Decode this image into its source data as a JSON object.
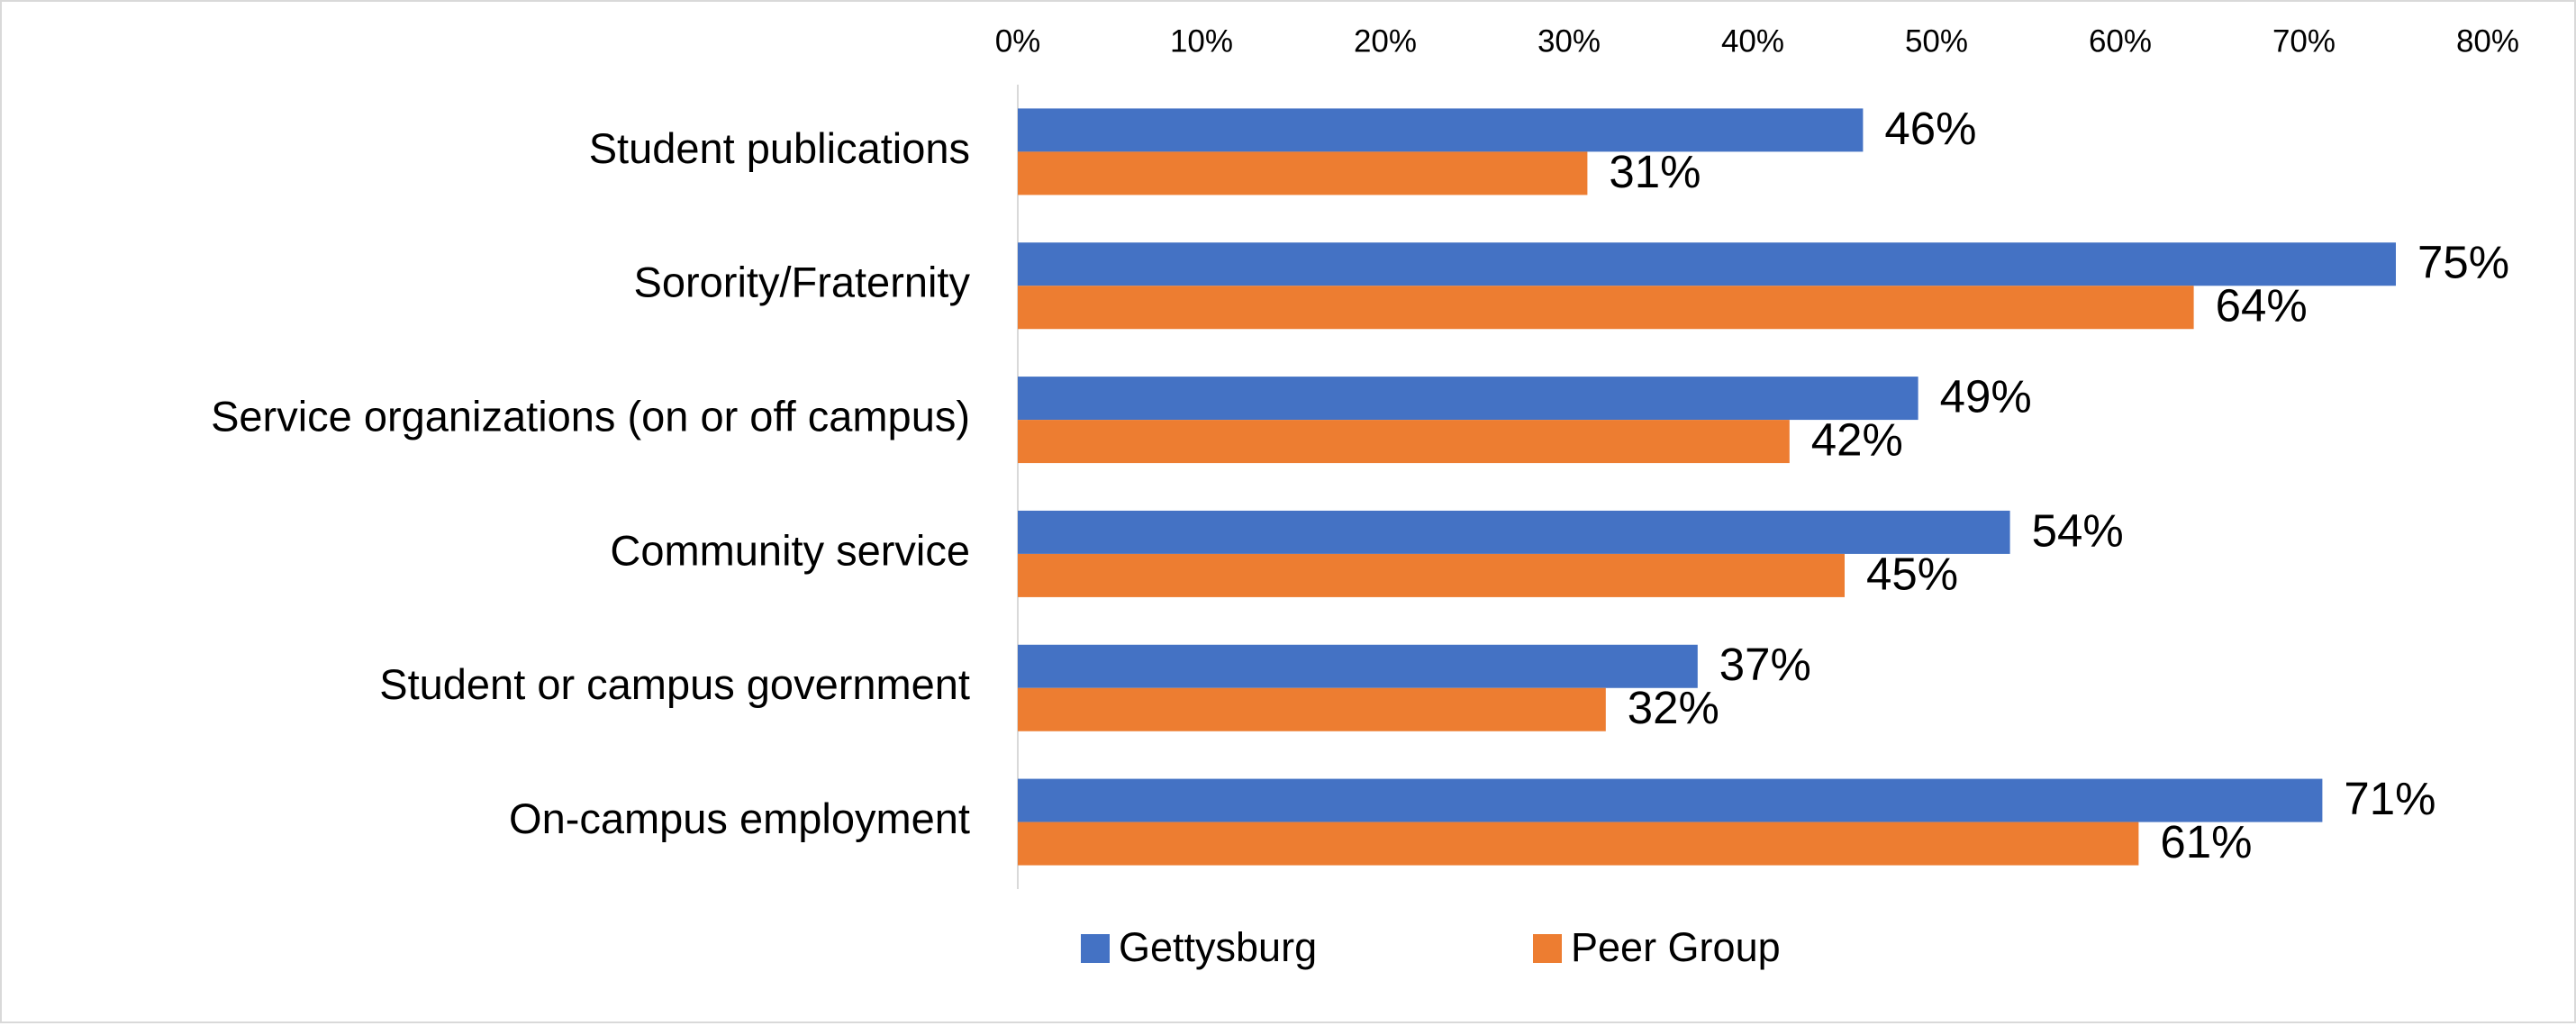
{
  "chart_data": {
    "type": "bar",
    "orientation": "horizontal",
    "title": "",
    "xlabel": "",
    "ylabel": "",
    "xlim": [
      0,
      80
    ],
    "x_ticks": [
      0,
      10,
      20,
      30,
      40,
      50,
      60,
      70,
      80
    ],
    "tick_suffix": "%",
    "x_axis_position": "top",
    "grid": false,
    "legend_position": "bottom",
    "categories": [
      "Student publications",
      "Sorority/Fraternity",
      "Service organizations (on or off campus)",
      "Community service",
      "Student or campus government",
      "On-campus employment"
    ],
    "series": [
      {
        "name": "Gettysburg",
        "color": "#4472C4",
        "values": [
          46,
          75,
          49,
          54,
          37,
          71
        ],
        "labels": [
          "46%",
          "75%",
          "49%",
          "54%",
          "37%",
          "71%"
        ]
      },
      {
        "name": "Peer Group",
        "color": "#ED7D31",
        "values": [
          31,
          64,
          42,
          45,
          32,
          61
        ],
        "labels": [
          "31%",
          "64%",
          "42%",
          "45%",
          "32%",
          "61%"
        ]
      }
    ],
    "tick_labels": [
      "0%",
      "10%",
      "20%",
      "30%",
      "40%",
      "50%",
      "60%",
      "70%",
      "80%"
    ]
  }
}
